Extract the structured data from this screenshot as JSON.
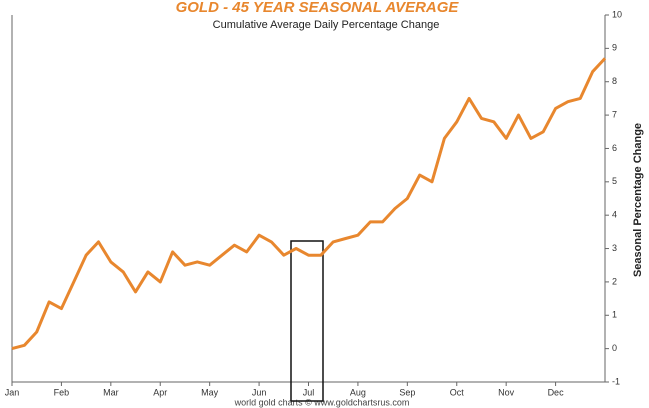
{
  "chart_data": {
    "type": "line",
    "title": "GOLD - 45 YEAR SEASONAL AVERAGE",
    "subtitle": "Cumulative Average Daily Percentage Change",
    "y_label": "Seasonal Percentage Change",
    "footer": "world gold charts © www.goldchartsrus.com",
    "categories": [
      "Jan",
      null,
      null,
      null,
      "Feb",
      null,
      null,
      null,
      "Mar",
      null,
      null,
      null,
      "Apr",
      null,
      null,
      null,
      "May",
      null,
      null,
      null,
      "Jun",
      null,
      null,
      null,
      "Jul",
      null,
      null,
      null,
      "Aug",
      null,
      null,
      null,
      "Sep",
      null,
      null,
      null,
      "Oct",
      null,
      null,
      null,
      "Nov",
      null,
      null,
      null,
      "Dec",
      null,
      null,
      null,
      null
    ],
    "series": [
      {
        "color": "#e8872e",
        "values": [
          0,
          0.1,
          0.5,
          1.4,
          1.2,
          2.0,
          2.8,
          3.2,
          2.6,
          2.3,
          1.7,
          2.3,
          2.0,
          2.9,
          2.5,
          2.6,
          2.5,
          2.8,
          3.1,
          2.9,
          3.4,
          3.2,
          2.8,
          3.0,
          2.8,
          2.8,
          3.2,
          3.3,
          3.4,
          3.8,
          3.8,
          4.2,
          4.5,
          5.2,
          5.0,
          6.3,
          6.8,
          7.5,
          6.9,
          6.8,
          6.3,
          7.0,
          6.3,
          6.5,
          7.2,
          7.4,
          7.5,
          8.3,
          8.7
        ]
      }
    ],
    "ylim": [
      -1,
      10
    ],
    "yticks": [
      -1,
      0,
      1,
      2,
      3,
      4,
      5,
      6,
      7,
      8,
      9,
      10
    ],
    "grid": false
  }
}
